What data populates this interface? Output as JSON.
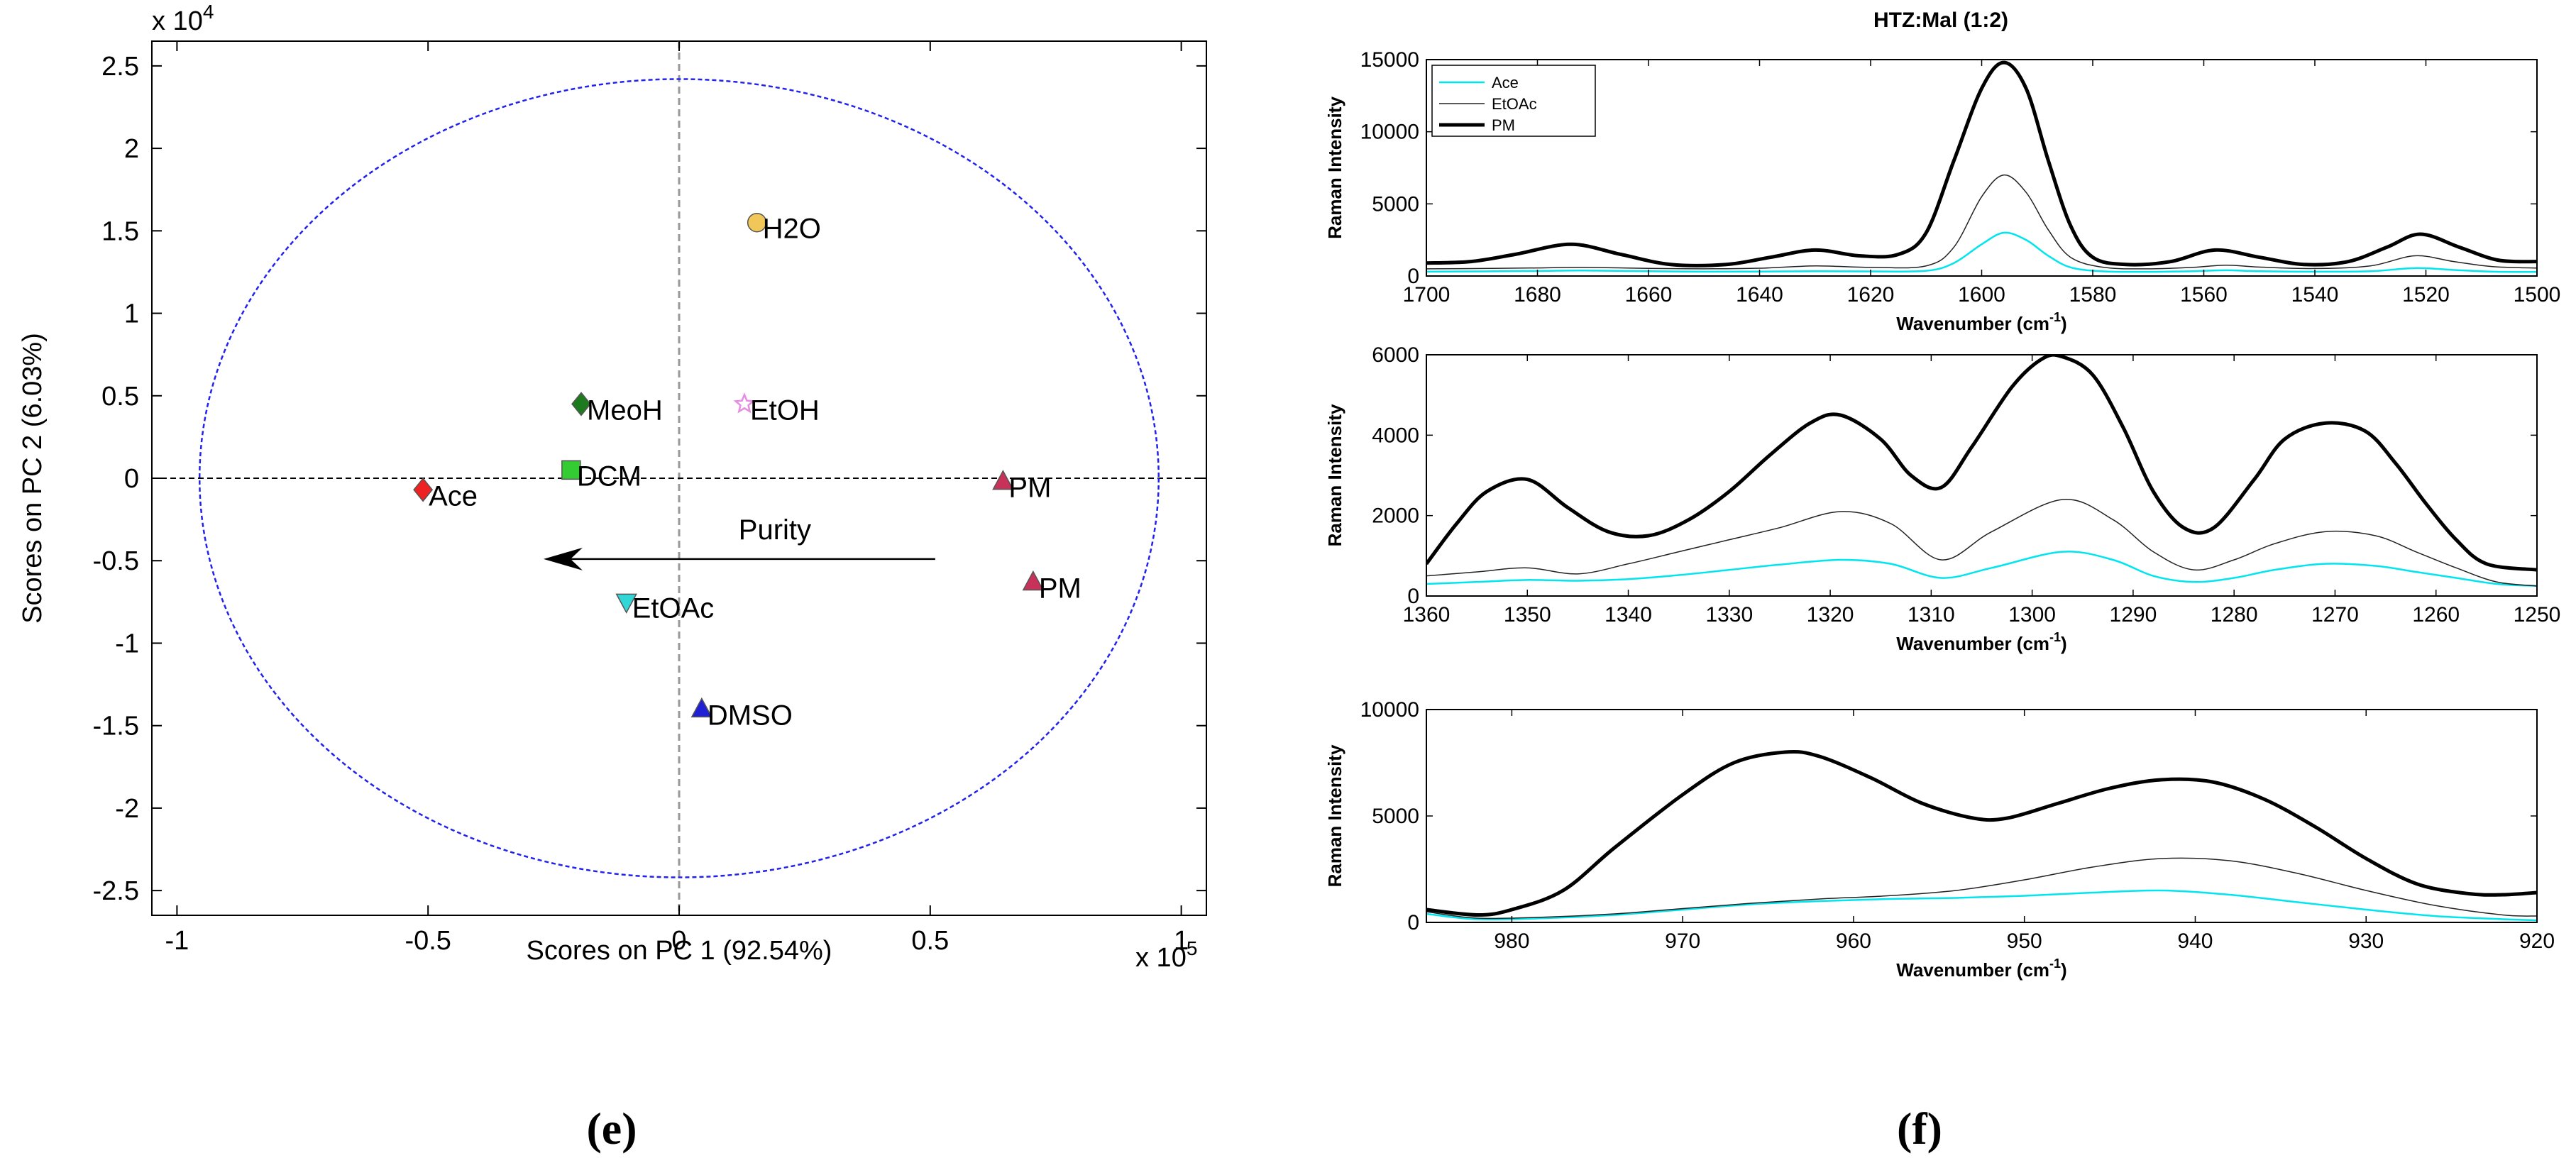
{
  "panel_labels": {
    "left": "(e)",
    "right": "(f)"
  },
  "colors": {
    "ellipse": "#2222ee",
    "ace_line": "#00e5ee",
    "etoac_line": "#222222",
    "pm_line": "#000000"
  },
  "chart_data": [
    {
      "type": "scatter",
      "title": "",
      "xlabel": "Scores on PC 1 (92.54%)",
      "ylabel": "Scores on PC 2 (6.03%)",
      "x_exponent": "x 10",
      "x_exponent_power": "5",
      "y_exponent": "x 10",
      "y_exponent_power": "4",
      "xlim": [
        -1.05,
        1.05
      ],
      "ylim": [
        -2.65,
        2.65
      ],
      "xticks": [
        -1,
        -0.5,
        0,
        0.5,
        1
      ],
      "xtick_labels": [
        "-1",
        "-0.5",
        "0",
        "0.5",
        "1"
      ],
      "yticks": [
        -2.5,
        -2,
        -1.5,
        -1,
        -0.5,
        0,
        0.5,
        1,
        1.5,
        2,
        2.5
      ],
      "ytick_labels": [
        "-2.5",
        "-2",
        "-1.5",
        "-1",
        "-0.5",
        "0",
        "0.5",
        "1",
        "1.5",
        "2",
        "2.5"
      ],
      "ellipse": {
        "cx": 0,
        "cy": 0,
        "rx": 0.955,
        "ry": 2.42
      },
      "arrow": {
        "from": [
          0.51,
          -0.49
        ],
        "to": [
          -0.27,
          -0.49
        ],
        "label": "Purity"
      },
      "points": [
        {
          "name": "H2O",
          "x": 0.155,
          "y": 1.55,
          "marker": "circle",
          "color": "#f2c75a"
        },
        {
          "name": "MeoH",
          "x": -0.195,
          "y": 0.45,
          "marker": "diamond",
          "color": "#1e7a1e"
        },
        {
          "name": "EtOH",
          "x": 0.13,
          "y": 0.45,
          "marker": "star",
          "color": "#e58de0"
        },
        {
          "name": "DCM",
          "x": -0.215,
          "y": 0.05,
          "marker": "square",
          "color": "#33cc33"
        },
        {
          "name": "Ace",
          "x": -0.51,
          "y": -0.07,
          "marker": "diamond",
          "color": "#ee2222"
        },
        {
          "name": "PM",
          "x": 0.645,
          "y": -0.02,
          "marker": "triangle",
          "color": "#c8325a"
        },
        {
          "name": "PM",
          "x": 0.705,
          "y": -0.63,
          "marker": "triangle",
          "color": "#c8325a"
        },
        {
          "name": "EtOAc",
          "x": -0.105,
          "y": -0.75,
          "marker": "triangle-down",
          "color": "#33d6d6"
        },
        {
          "name": "DMSO",
          "x": 0.045,
          "y": -1.4,
          "marker": "triangle",
          "color": "#1f1fd6"
        }
      ]
    },
    {
      "type": "line",
      "title": "HTZ:Mal (1:2)",
      "xlabel": "Wavenumber (cm",
      "xlabel_sup": "-1",
      "xlabel_end": ")",
      "ylabel": "Raman Intensity",
      "xlim": [
        1700,
        1500
      ],
      "ylim": [
        0,
        15000
      ],
      "xticks": [
        1700,
        1680,
        1660,
        1640,
        1620,
        1600,
        1580,
        1560,
        1540,
        1520,
        1500
      ],
      "yticks": [
        0,
        5000,
        10000,
        15000
      ],
      "legend": [
        "Ace",
        "EtOAc",
        "PM"
      ],
      "series": [
        {
          "name": "Ace",
          "x": [
            1700,
            1690,
            1680,
            1672,
            1660,
            1650,
            1640,
            1630,
            1620,
            1610,
            1605,
            1600,
            1596,
            1592,
            1588,
            1584,
            1578,
            1570,
            1562,
            1556,
            1550,
            1540,
            1530,
            1522,
            1515,
            1508,
            1500
          ],
          "values": [
            300,
            320,
            350,
            380,
            330,
            300,
            310,
            330,
            320,
            360,
            900,
            2200,
            3000,
            2500,
            1400,
            600,
            320,
            290,
            330,
            400,
            330,
            300,
            330,
            550,
            420,
            300,
            280
          ]
        },
        {
          "name": "EtOAc",
          "x": [
            1700,
            1690,
            1680,
            1672,
            1660,
            1650,
            1640,
            1630,
            1620,
            1610,
            1605,
            1600,
            1596,
            1592,
            1588,
            1584,
            1578,
            1570,
            1562,
            1556,
            1550,
            1540,
            1530,
            1522,
            1515,
            1508,
            1500
          ],
          "values": [
            500,
            520,
            560,
            600,
            530,
            500,
            540,
            700,
            600,
            700,
            2000,
            5500,
            7000,
            5800,
            3200,
            1300,
            600,
            500,
            600,
            750,
            620,
            520,
            700,
            1400,
            1000,
            650,
            550
          ]
        },
        {
          "name": "PM",
          "x": [
            1700,
            1692,
            1684,
            1674,
            1665,
            1656,
            1646,
            1638,
            1630,
            1622,
            1615,
            1610,
            1605,
            1600,
            1596,
            1592,
            1588,
            1584,
            1580,
            1574,
            1566,
            1558,
            1550,
            1542,
            1534,
            1527,
            1521,
            1514,
            1507,
            1500
          ],
          "values": [
            900,
            1000,
            1500,
            2200,
            1500,
            800,
            800,
            1300,
            1800,
            1400,
            1500,
            3000,
            8000,
            13000,
            14800,
            13000,
            8000,
            3500,
            1300,
            800,
            1000,
            1800,
            1300,
            800,
            1000,
            2000,
            2900,
            2000,
            1100,
            1000
          ]
        }
      ]
    },
    {
      "type": "line",
      "title": "",
      "xlabel": "Wavenumber (cm",
      "xlabel_sup": "-1",
      "xlabel_end": ")",
      "ylabel": "Raman Intensity",
      "xlim": [
        1360,
        1250
      ],
      "ylim": [
        0,
        6000
      ],
      "xticks": [
        1360,
        1350,
        1340,
        1330,
        1320,
        1310,
        1300,
        1290,
        1280,
        1270,
        1260,
        1250
      ],
      "yticks": [
        0,
        2000,
        4000,
        6000
      ],
      "series": [
        {
          "name": "Ace",
          "x": [
            1360,
            1355,
            1350,
            1345,
            1340,
            1335,
            1330,
            1325,
            1319,
            1314,
            1309,
            1304,
            1297,
            1292,
            1288,
            1284,
            1280,
            1276,
            1271,
            1266,
            1262,
            1258,
            1254,
            1250
          ],
          "values": [
            300,
            350,
            400,
            380,
            420,
            520,
            650,
            780,
            900,
            800,
            450,
            700,
            1100,
            900,
            500,
            350,
            450,
            650,
            800,
            750,
            600,
            450,
            300,
            250
          ]
        },
        {
          "name": "EtOAc",
          "x": [
            1360,
            1355,
            1350,
            1345,
            1340,
            1335,
            1330,
            1325,
            1319,
            1314,
            1309,
            1304,
            1297,
            1292,
            1288,
            1284,
            1280,
            1276,
            1271,
            1266,
            1262,
            1258,
            1254,
            1250
          ],
          "values": [
            500,
            600,
            700,
            550,
            800,
            1100,
            1400,
            1700,
            2100,
            1800,
            900,
            1600,
            2400,
            1900,
            1100,
            650,
            900,
            1300,
            1600,
            1500,
            1100,
            700,
            350,
            250
          ]
        },
        {
          "name": "PM",
          "x": [
            1360,
            1357,
            1354,
            1350,
            1346,
            1342,
            1338,
            1334,
            1330,
            1326,
            1322,
            1319,
            1315,
            1312,
            1309,
            1306,
            1302,
            1299,
            1297,
            1294,
            1291,
            1288,
            1285,
            1282,
            1278,
            1275,
            1271,
            1267,
            1264,
            1261,
            1258,
            1255,
            1250
          ],
          "values": [
            800,
            1800,
            2600,
            2900,
            2200,
            1600,
            1500,
            1900,
            2600,
            3500,
            4300,
            4500,
            3900,
            3000,
            2700,
            3700,
            5200,
            5900,
            5950,
            5500,
            4200,
            2600,
            1700,
            1700,
            2900,
            3900,
            4300,
            4100,
            3300,
            2300,
            1400,
            800,
            650
          ]
        }
      ]
    },
    {
      "type": "line",
      "title": "",
      "xlabel": "Wavenumber (cm",
      "xlabel_sup": "-1",
      "xlabel_end": ")",
      "ylabel": "Raman Intensity",
      "xlim": [
        985,
        920
      ],
      "ylim": [
        0,
        10000
      ],
      "xticks": [
        980,
        970,
        960,
        950,
        940,
        930,
        920
      ],
      "yticks": [
        0,
        5000,
        10000
      ],
      "series": [
        {
          "name": "Ace",
          "x": [
            985,
            982,
            978,
            974,
            970,
            966,
            962,
            958,
            954,
            950,
            946,
            942,
            938,
            934,
            930,
            926,
            922,
            920
          ],
          "values": [
            400,
            150,
            200,
            350,
            600,
            850,
            1000,
            1100,
            1150,
            1250,
            1400,
            1500,
            1300,
            950,
            600,
            300,
            150,
            100
          ]
        },
        {
          "name": "EtOAc",
          "x": [
            985,
            982,
            978,
            974,
            970,
            966,
            962,
            958,
            954,
            950,
            946,
            942,
            938,
            934,
            930,
            926,
            922,
            920
          ],
          "values": [
            500,
            200,
            250,
            400,
            650,
            900,
            1100,
            1250,
            1500,
            2000,
            2600,
            3000,
            2900,
            2300,
            1500,
            800,
            350,
            300
          ]
        },
        {
          "name": "PM",
          "x": [
            985,
            982,
            980,
            977,
            974,
            970,
            967,
            964,
            962,
            959,
            956,
            953,
            951,
            948,
            945,
            942,
            939,
            936,
            933,
            930,
            927,
            924,
            922,
            920
          ],
          "values": [
            600,
            350,
            600,
            1500,
            3500,
            6000,
            7500,
            8000,
            7800,
            6800,
            5600,
            4900,
            4900,
            5600,
            6300,
            6700,
            6600,
            5800,
            4500,
            3000,
            1800,
            1350,
            1300,
            1400
          ]
        }
      ]
    }
  ]
}
